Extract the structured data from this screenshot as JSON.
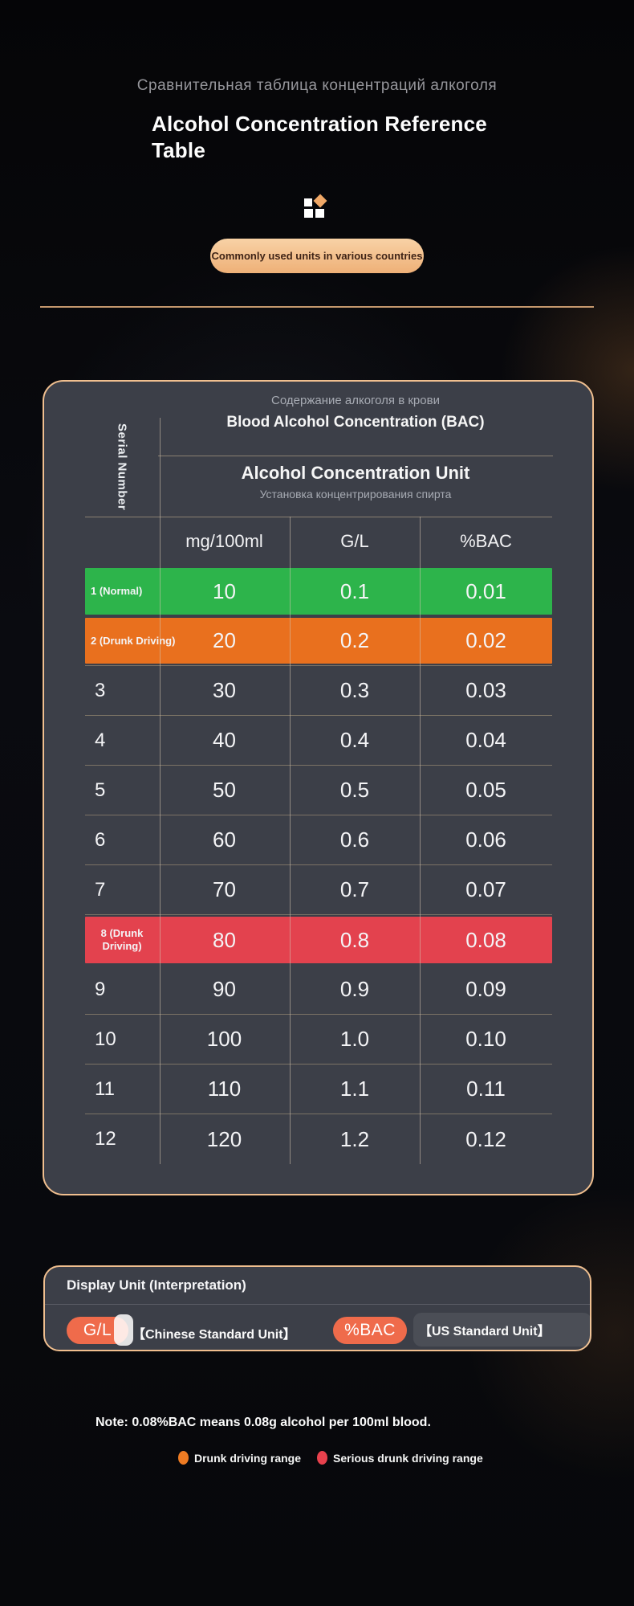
{
  "page": {
    "subtitle_ru": "Сравнительная таблица концентраций алкоголя",
    "title": "Alcohol Concentration Reference Table",
    "badge": "Commonly used units in various countries"
  },
  "table": {
    "header": {
      "serial_label": "Serial Number",
      "bac_ru": "Содержание алкоголя в крови",
      "bac_en": "Blood Alcohol Concentration (BAC)",
      "unit_en": "Alcohol Concentration Unit",
      "unit_ru": "Установка концентрирования спирта",
      "columns": [
        "mg/100ml",
        "G/L",
        "%BAC"
      ]
    },
    "rows": [
      {
        "serial": "1 (Normal)",
        "mg": "10",
        "gl": "0.1",
        "bac": "0.01",
        "highlight": "green",
        "divider_below": false
      },
      {
        "serial": "2 (Drunk Driving)",
        "mg": "20",
        "gl": "0.2",
        "bac": "0.02",
        "highlight": "orange",
        "divider_below": true
      },
      {
        "serial": "3",
        "mg": "30",
        "gl": "0.3",
        "bac": "0.03",
        "highlight": null,
        "divider_below": true
      },
      {
        "serial": "4",
        "mg": "40",
        "gl": "0.4",
        "bac": "0.04",
        "highlight": null,
        "divider_below": true
      },
      {
        "serial": "5",
        "mg": "50",
        "gl": "0.5",
        "bac": "0.05",
        "highlight": null,
        "divider_below": true
      },
      {
        "serial": "6",
        "mg": "60",
        "gl": "0.6",
        "bac": "0.06",
        "highlight": null,
        "divider_below": true
      },
      {
        "serial": "7",
        "mg": "70",
        "gl": "0.7",
        "bac": "0.07",
        "highlight": null,
        "divider_below": true
      },
      {
        "serial": "8 (Drunk Driving)",
        "mg": "80",
        "gl": "0.8",
        "bac": "0.08",
        "highlight": "red",
        "divider_below": false
      },
      {
        "serial": "9",
        "mg": "90",
        "gl": "0.9",
        "bac": "0.09",
        "highlight": null,
        "divider_below": true
      },
      {
        "serial": "10",
        "mg": "100",
        "gl": "1.0",
        "bac": "0.10",
        "highlight": null,
        "divider_below": true
      },
      {
        "serial": "11",
        "mg": "110",
        "gl": "1.1",
        "bac": "0.11",
        "highlight": null,
        "divider_below": true
      },
      {
        "serial": "12",
        "mg": "120",
        "gl": "1.2",
        "bac": "0.12",
        "highlight": null,
        "divider_below": false
      }
    ]
  },
  "legend_card": {
    "title": "Display Unit (Interpretation)",
    "items": [
      {
        "pill": "G/L",
        "label": "【Chinese Standard Unit】"
      },
      {
        "pill": "%BAC",
        "label": "【US Standard Unit】"
      }
    ]
  },
  "footer": {
    "note": "Note: 0.08%BAC means 0.08g alcohol per 100ml blood.",
    "legend": [
      {
        "label": "Drunk driving range",
        "color": "#ee7b23"
      },
      {
        "label": "Serious drunk driving range",
        "color": "#e8414d"
      }
    ]
  },
  "colors": {
    "background": "#07080b",
    "card_background": "#3c3f48",
    "card_border": "#f0bf8f",
    "grid_line": "#7b7265",
    "row_normal_green": "#2db44b",
    "row_drunk_orange": "#e9701e",
    "row_serious_red": "#e3424e",
    "unit_pill_orange": "#ef6b4b",
    "badge_peach": "#f3c08f",
    "text_gray": "#a7abb3"
  },
  "chart_data": {
    "type": "table",
    "title": "Alcohol Concentration Reference Table",
    "columns": [
      "Serial Number",
      "mg/100ml",
      "G/L",
      "%BAC"
    ],
    "rows": [
      [
        "1 (Normal)",
        10,
        0.1,
        0.01
      ],
      [
        "2 (Drunk Driving)",
        20,
        0.2,
        0.02
      ],
      [
        "3",
        30,
        0.3,
        0.03
      ],
      [
        "4",
        40,
        0.4,
        0.04
      ],
      [
        "5",
        50,
        0.5,
        0.05
      ],
      [
        "6",
        60,
        0.6,
        0.06
      ],
      [
        "7",
        70,
        0.7,
        0.07
      ],
      [
        "8 (Drunk Driving)",
        80,
        0.8,
        0.08
      ],
      [
        "9",
        90,
        0.9,
        0.09
      ],
      [
        "10",
        100,
        1.0,
        0.1
      ],
      [
        "11",
        110,
        1.1,
        0.11
      ],
      [
        "12",
        120,
        1.2,
        0.12
      ]
    ],
    "row_highlights": {
      "1": "green normal",
      "2": "orange drunk driving",
      "8": "red serious drunk driving"
    }
  }
}
